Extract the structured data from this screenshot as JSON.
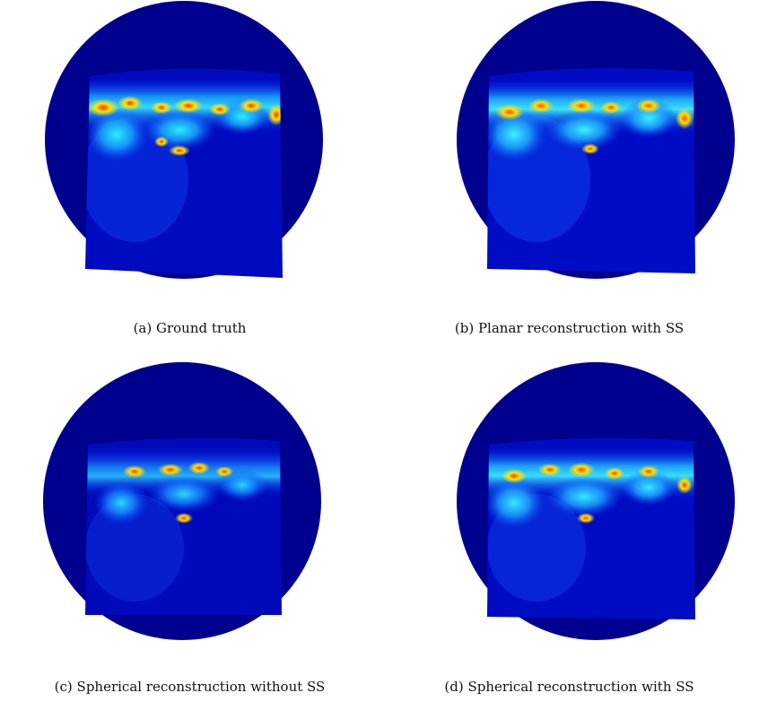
{
  "figure": {
    "panels": [
      {
        "id": "a",
        "caption": "(a) Ground truth"
      },
      {
        "id": "b",
        "caption": "(b) Planar reconstruction with SS"
      },
      {
        "id": "c",
        "caption": "(c) Spherical reconstruction without SS"
      },
      {
        "id": "d",
        "caption": "(d) Spherical reconstruction with SS"
      }
    ]
  },
  "colors": {
    "disc_background": "#00008f",
    "map_background": "#000bbf",
    "colormap": "jet"
  }
}
